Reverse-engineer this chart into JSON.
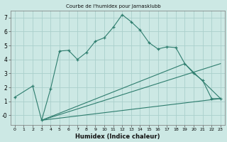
{
  "title": "Courbe de l'humidex pour Jarnasklubb",
  "xlabel": "Humidex (Indice chaleur)",
  "bg_color": "#cce8e4",
  "line_color": "#2e7d6e",
  "grid_color": "#aad0cb",
  "xlim": [
    -0.5,
    23.5
  ],
  "ylim": [
    -0.7,
    7.5
  ],
  "xticks": [
    0,
    1,
    2,
    3,
    4,
    5,
    6,
    7,
    8,
    9,
    10,
    11,
    12,
    13,
    14,
    15,
    16,
    17,
    18,
    19,
    20,
    21,
    22,
    23
  ],
  "yticks": [
    0,
    1,
    2,
    3,
    4,
    5,
    6,
    7
  ],
  "ytick_labels": [
    "-0",
    "1",
    "2",
    "3",
    "4",
    "5",
    "6",
    "7"
  ],
  "curve1_x": [
    0,
    2,
    3,
    4,
    5,
    6,
    7,
    8,
    9,
    10,
    11,
    12,
    13,
    14,
    15,
    16,
    17,
    18,
    19,
    20,
    21,
    22,
    23
  ],
  "curve1_y": [
    1.3,
    2.1,
    -0.35,
    1.9,
    4.6,
    4.65,
    4.0,
    4.5,
    5.3,
    5.55,
    6.3,
    7.2,
    6.7,
    6.1,
    5.2,
    4.75,
    4.9,
    4.85,
    3.7,
    3.0,
    2.5,
    1.2,
    1.2
  ],
  "curve2_x": [
    3,
    23
  ],
  "curve2_y": [
    -0.35,
    1.2
  ],
  "curve3_x": [
    3,
    19,
    23
  ],
  "curve3_y": [
    -0.35,
    3.7,
    1.2
  ],
  "curve4_x": [
    3,
    23
  ],
  "curve4_y": [
    -0.35,
    3.7
  ]
}
